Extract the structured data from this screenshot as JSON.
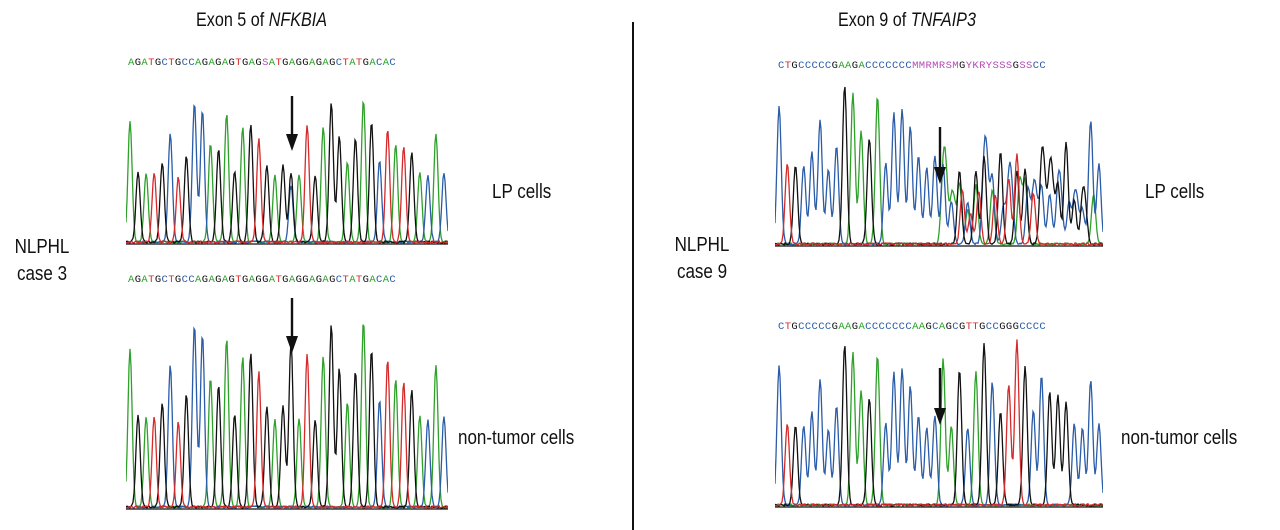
{
  "colors": {
    "A": "#2ea12a",
    "C": "#2a5ca8",
    "G": "#111111",
    "T": "#d62a2a",
    "ambiguous": "#b54ab5",
    "baseline_black": "#111111"
  },
  "left_panel": {
    "title_prefix": "Exon 5 of ",
    "title_gene": "NFKBIA",
    "case_label_line1": "NLPHL",
    "case_label_line2": "case 3",
    "top_label": "LP cells",
    "bottom_label": "non-tumor cells",
    "top_sequence": "AGATGCTGCCAGAGAGTGAGSATGAGGAGAGCTATGACAC",
    "bottom_sequence": "AGATGCTGCCAGAGAGTGAGGATGAGGAGAGCTATGACAC"
  },
  "right_panel": {
    "title_prefix": "Exon 9 of ",
    "title_gene": "TNFAIP3",
    "case_label_line1": "NLPHL",
    "case_label_line2": "case 9",
    "top_label": "LP cells",
    "bottom_label": "non-tumor cells",
    "top_sequence": "CTGCCCCCGAAGACCCCCCCMMRMRSMGYKRYSSSGSSCC",
    "bottom_sequence": "CTGCCCCCGAAGACCCCCCCAAGCAGCGTTGCCGGGCCCC"
  }
}
